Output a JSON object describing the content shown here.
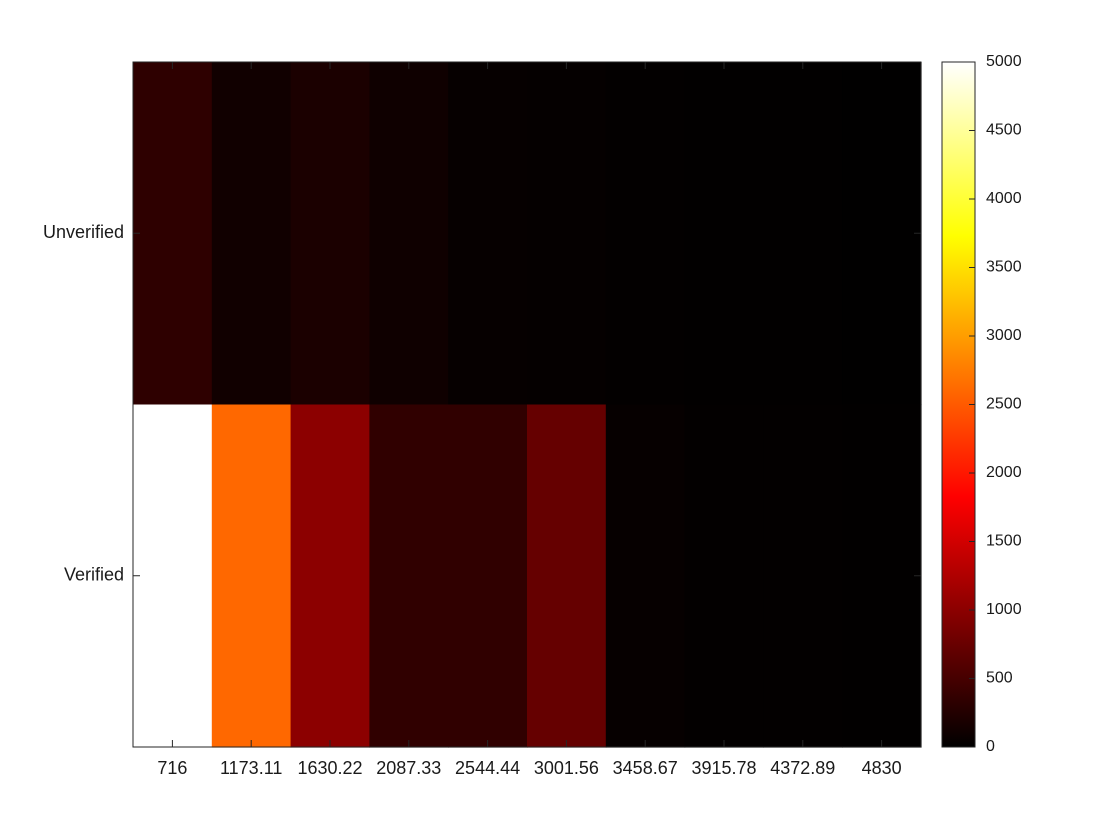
{
  "chart_data": {
    "type": "heatmap",
    "title": "",
    "xlabel": "",
    "ylabel": "",
    "x_categories": [
      "716",
      "1173.11",
      "1630.22",
      "2087.33",
      "2544.44",
      "3001.56",
      "3458.67",
      "3915.78",
      "4372.89",
      "4830"
    ],
    "y_categories": [
      "Unverified",
      "Verified"
    ],
    "values": [
      [
        330,
        120,
        190,
        110,
        45,
        35,
        20,
        15,
        12,
        10
      ],
      [
        5000,
        2600,
        1000,
        340,
        340,
        720,
        40,
        25,
        18,
        12
      ]
    ],
    "colormap": "hot",
    "colorbar": {
      "min": 0,
      "max": 5000,
      "ticks": [
        "0",
        "500",
        "1000",
        "1500",
        "2000",
        "2500",
        "3000",
        "3500",
        "4000",
        "4500",
        "5000"
      ]
    }
  }
}
